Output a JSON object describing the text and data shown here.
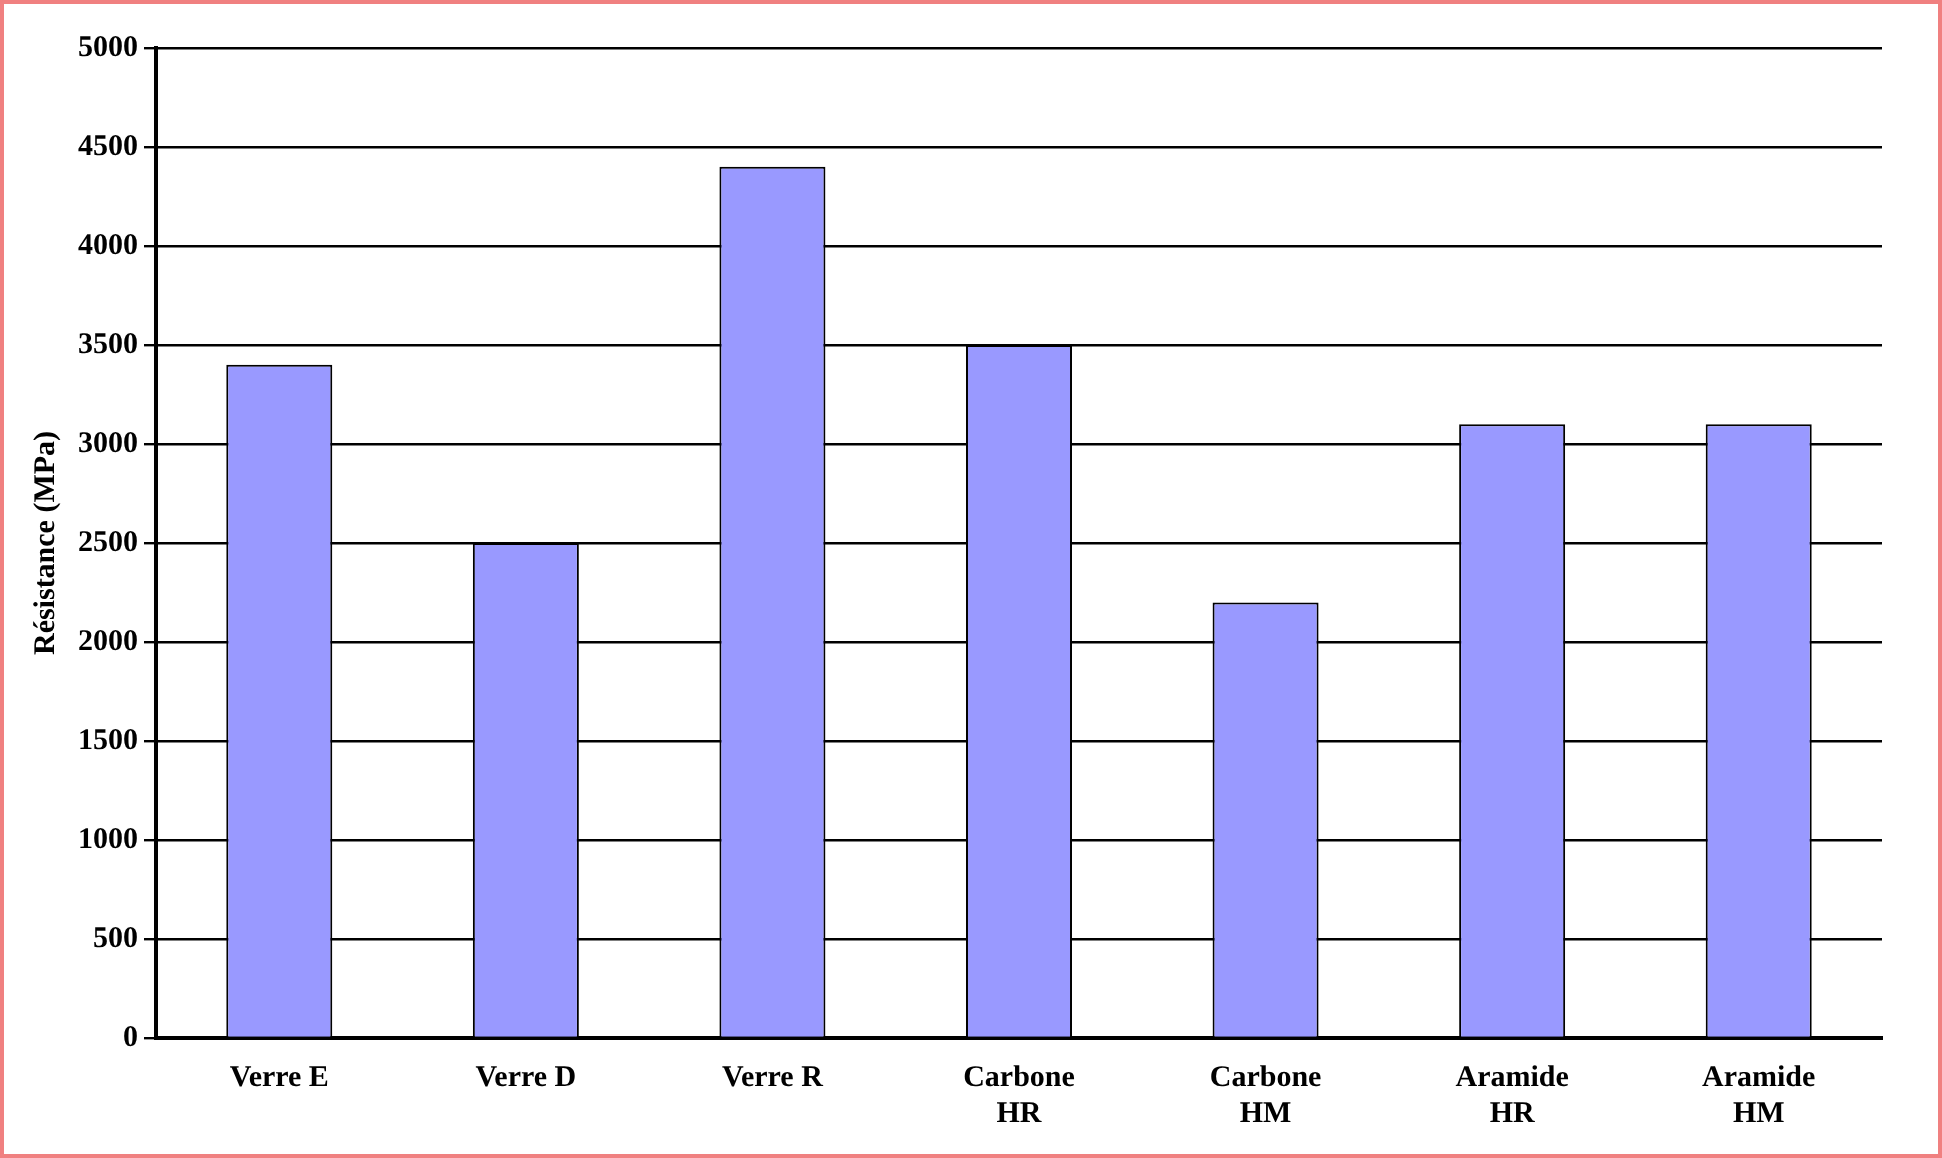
{
  "chart_data": {
    "type": "bar",
    "ylabel": "Résistance (MPa)",
    "categories": [
      "Verre E",
      "Verre D",
      "Verre R",
      "Carbone HR",
      "Carbone HM",
      "Aramide HR",
      "Aramide HM"
    ],
    "values": [
      3400,
      2500,
      4400,
      3500,
      2200,
      3100,
      3100
    ],
    "color": "#9999ff",
    "ylim": [
      0,
      5000
    ],
    "yticks": [
      0,
      500,
      1000,
      1500,
      2000,
      2500,
      3000,
      3500,
      4000,
      4500,
      5000
    ],
    "grid": "y",
    "legend": false
  }
}
